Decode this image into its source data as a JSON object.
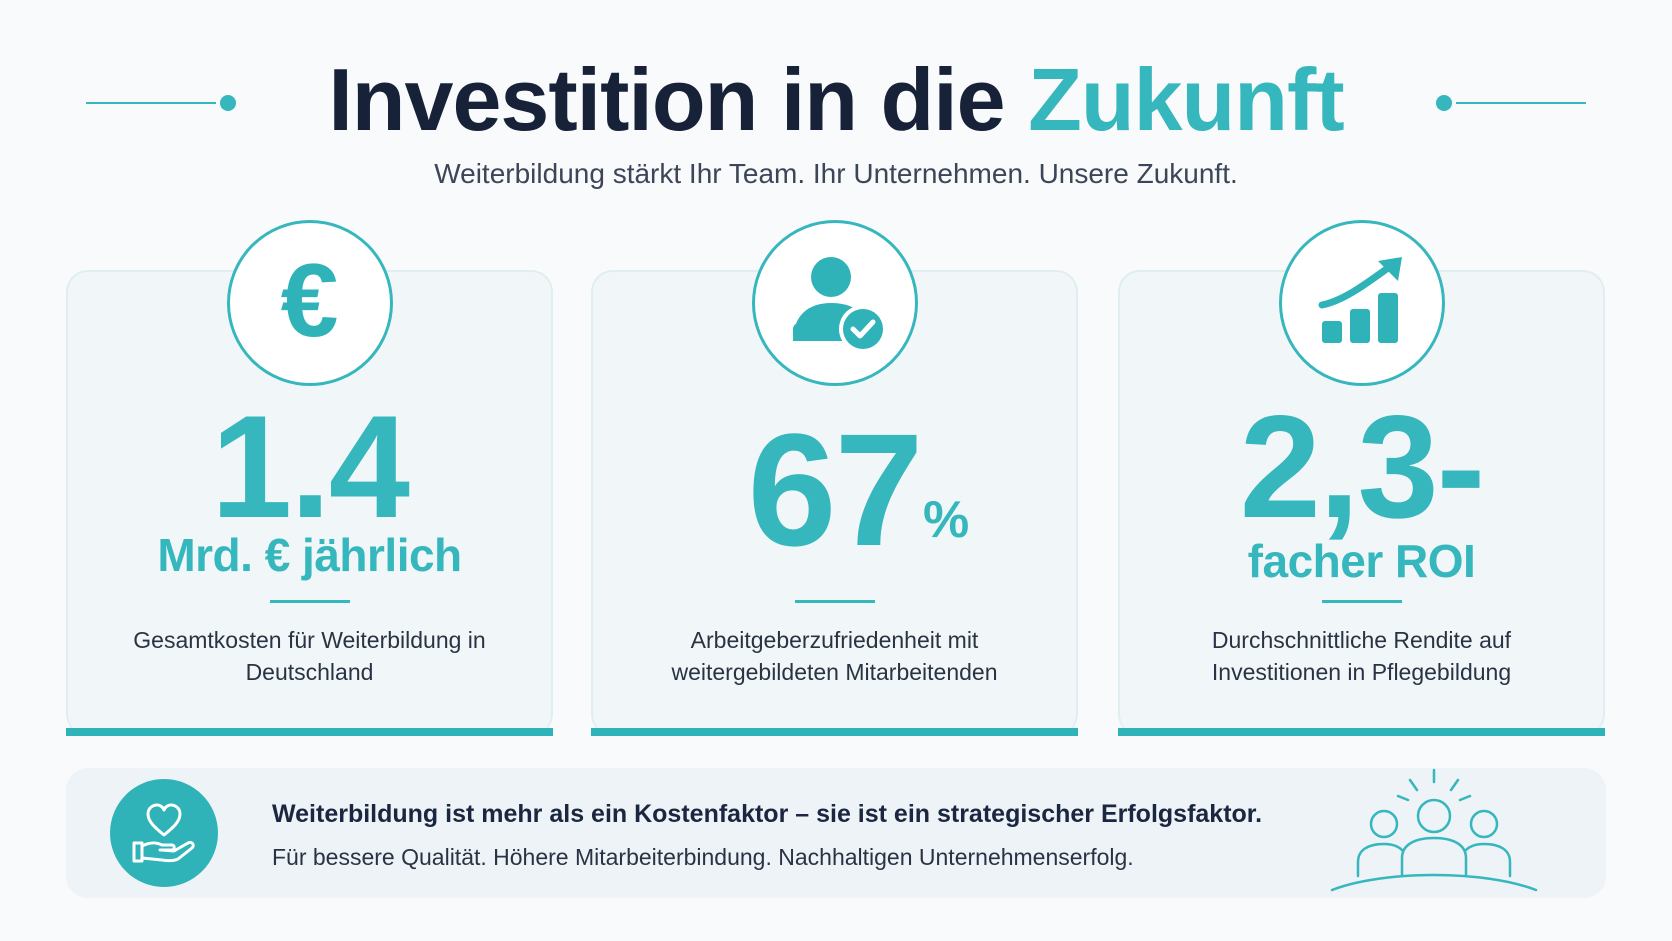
{
  "header": {
    "title_main": "Investition in die ",
    "title_accent": "Zukunft",
    "subtitle": "Weiterbildung stärkt Ihr Team. Ihr Unternehmen. Unsere Zukunft."
  },
  "cards": [
    {
      "icon": "euro-icon",
      "icon_glyph": "€",
      "value": "1.4",
      "unit": "Mrd. € jährlich",
      "desc_line1": "Gesamtkosten für Weiterbildung in",
      "desc_line2": "Deutschland"
    },
    {
      "icon": "user-check-icon",
      "value": "67",
      "unit": "%",
      "desc_line1": "Arbeitgeberzufriedenheit mit",
      "desc_line2": "weitergebildeten Mitarbeitenden"
    },
    {
      "icon": "growth-chart-icon",
      "value": "2,3-",
      "unit": "facher ROI",
      "desc_line1": "Durchschnittliche Rendite auf",
      "desc_line2": "Investitionen in Pflegebildung"
    }
  ],
  "banner": {
    "icon": "heart-hand-icon",
    "headline": "Weiterbildung ist mehr als ein Kostenfaktor – sie ist ein strategischer Erfolgsfaktor.",
    "sub": "Für bessere Qualität. Höhere Mitarbeiterbindung. Nachhaltigen Unternehmenserfolg.",
    "illustration": "team-icon"
  },
  "colors": {
    "accent": "#36b6bd",
    "dark": "#172238",
    "card_bg": "#f1f7f8",
    "banner_bg": "#edf3f6"
  }
}
